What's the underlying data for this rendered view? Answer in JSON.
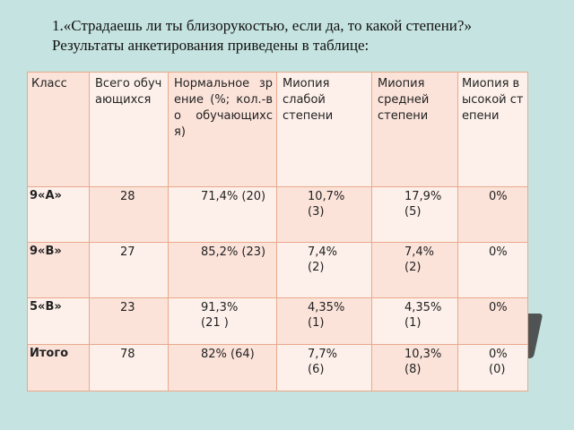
{
  "title": {
    "line1": "1.«Страдаешь ли ты близорукостью, если да, то какой степени?»",
    "line2": "Результаты анкетирования приведены в таблице:"
  },
  "table": {
    "headers": {
      "class": "Класс",
      "total": "Всего обучающихся",
      "normal": "Нормальное зрение (%; кол.-во обучающихся)",
      "myopia_weak": "Миопия слабой степени",
      "myopia_medium": "Миопия средней степени",
      "myopia_high": "Миопия высокой степени"
    },
    "rows": [
      {
        "class": "9«А»",
        "total": "28",
        "normal": "71,4% (20)",
        "weak_pct": "10,7%",
        "weak_cnt": "(3)",
        "medium_pct": "17,9%",
        "medium_cnt": "(5)",
        "high_pct": "0%",
        "high_cnt": ""
      },
      {
        "class": "9«В»",
        "total": "27",
        "normal": "85,2% (23)",
        "weak_pct": "7,4%",
        "weak_cnt": "(2)",
        "medium_pct": "7,4%",
        "medium_cnt": "(2)",
        "high_pct": "0%",
        "high_cnt": ""
      },
      {
        "class": "5«В»",
        "total": "23",
        "normal_pct": "91,3%",
        "normal_cnt": "(21 )",
        "weak_pct": "4,35%",
        "weak_cnt": "(1)",
        "medium_pct": "4,35%",
        "medium_cnt": "(1)",
        "high_pct": "0%",
        "high_cnt": ""
      },
      {
        "class": "Итого",
        "total": "78",
        "normal": "82% (64)",
        "weak_pct": "7,7%",
        "weak_cnt": "(6)",
        "medium_pct": "10,3%",
        "medium_cnt": "(8)",
        "high_pct": "0%",
        "high_cnt": "(0)"
      }
    ]
  }
}
